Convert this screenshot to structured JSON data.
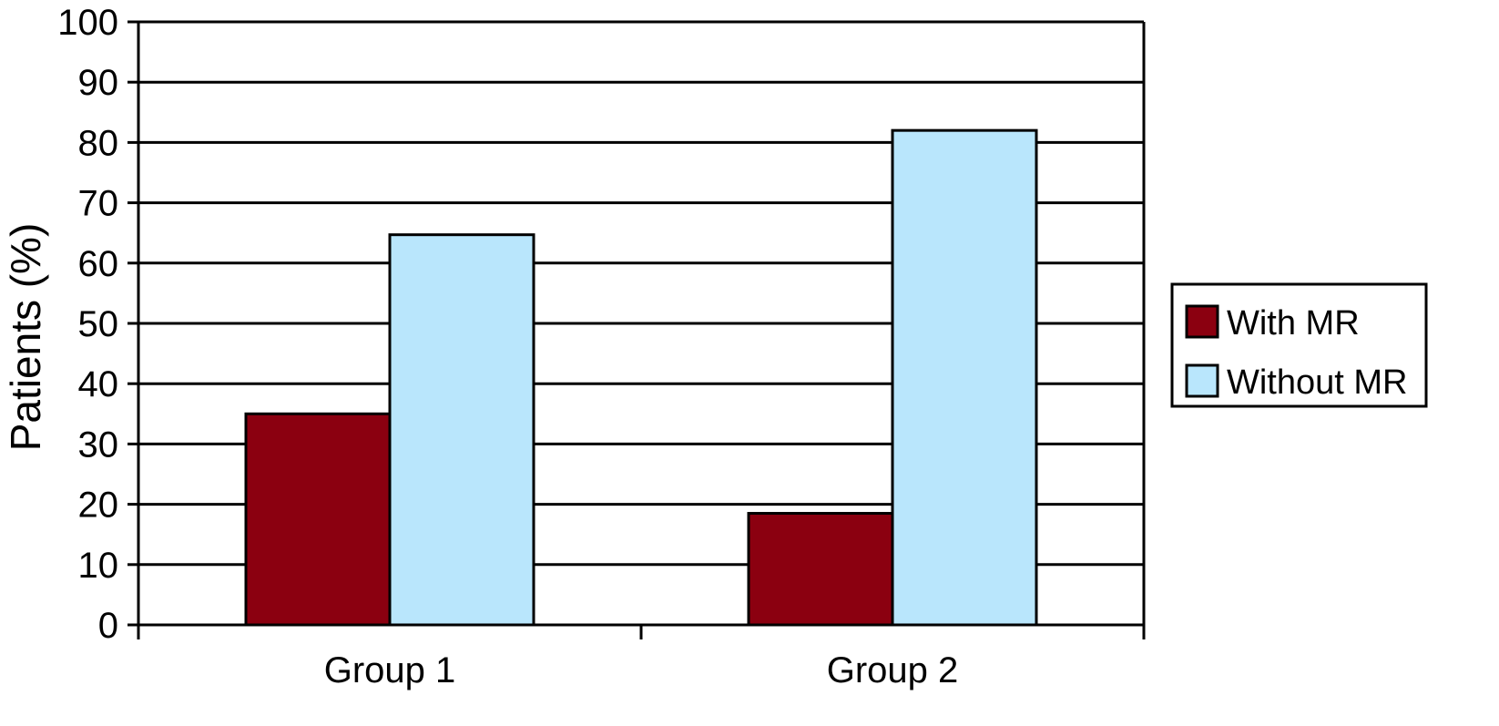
{
  "chart_data": {
    "type": "bar",
    "title": "",
    "xlabel": "",
    "ylabel": "Patients (%)",
    "ylim": [
      0,
      100
    ],
    "yticks": [
      0,
      10,
      20,
      30,
      40,
      50,
      60,
      70,
      80,
      90,
      100
    ],
    "grid": true,
    "legend_position": "right",
    "categories": [
      "Group 1",
      "Group 2"
    ],
    "series": [
      {
        "name": "With MR",
        "color": "#8b0010",
        "values": [
          35,
          18.5
        ]
      },
      {
        "name": "Without MR",
        "color": "#b9e6fc",
        "values": [
          64.7,
          82
        ]
      }
    ]
  }
}
